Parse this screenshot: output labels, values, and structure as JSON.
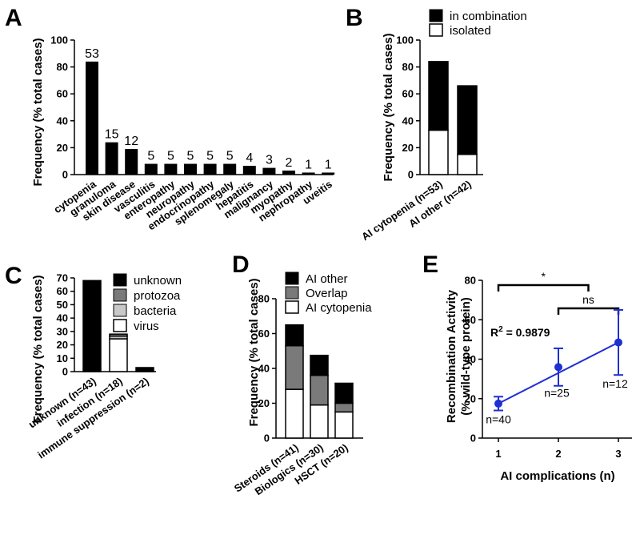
{
  "colors": {
    "black": "#000000",
    "dark_gray": "#7a7a7a",
    "light_gray": "#c8c8c8",
    "white": "#ffffff",
    "line_blue": "#1f2fd1"
  },
  "chart_data": [
    {
      "panel": "A",
      "type": "bar",
      "ylabel": "Frequency (% total cases)",
      "ylim": [
        0,
        100
      ],
      "yticks": [
        0,
        20,
        40,
        60,
        80,
        100
      ],
      "categories": [
        "cytopenia",
        "granuloma",
        "skin disease",
        "vasculitis",
        "enteropathy",
        "neuropathy",
        "endocrinopathy",
        "splenomegaly",
        "hepatitis",
        "malignancy",
        "myopathy",
        "nephropathy",
        "uveitis"
      ],
      "values": [
        84,
        24,
        19,
        8,
        8,
        8,
        8,
        8,
        6.5,
        5,
        3,
        1.5,
        1.5
      ],
      "data_labels": [
        "53",
        "15",
        "12",
        "5",
        "5",
        "5",
        "5",
        "5",
        "4",
        "3",
        "2",
        "1",
        "1"
      ]
    },
    {
      "panel": "B",
      "type": "bar",
      "stacked": true,
      "ylabel": "Frequency (% total cases)",
      "ylim": [
        0,
        100
      ],
      "yticks": [
        0,
        20,
        40,
        60,
        80,
        100
      ],
      "categories": [
        "AI cytopenia (n=53)",
        "AI other (n=42)"
      ],
      "series": [
        {
          "name": "isolated",
          "values": [
            33,
            15
          ]
        },
        {
          "name": "in combination",
          "values": [
            51,
            51
          ]
        }
      ],
      "legend": "top-right"
    },
    {
      "panel": "C",
      "type": "bar",
      "stacked": true,
      "ylabel": "Frequency (% total cases)",
      "ylim": [
        0,
        70
      ],
      "yticks": [
        0,
        10,
        20,
        30,
        40,
        50,
        60,
        70
      ],
      "categories": [
        "unknown (n=43)",
        "infection (n=18)",
        "immune suppression (n=2)"
      ],
      "series": [
        {
          "name": "virus",
          "values": [
            0,
            24.5,
            0
          ]
        },
        {
          "name": "bacteria",
          "values": [
            0,
            2,
            0
          ]
        },
        {
          "name": "protozoa",
          "values": [
            0,
            1.5,
            0
          ]
        },
        {
          "name": "unknown",
          "values": [
            68,
            0,
            3
          ]
        }
      ],
      "legend": "top-right"
    },
    {
      "panel": "D",
      "type": "bar",
      "stacked": true,
      "ylabel": "Frequency (% total cases)",
      "ylim": [
        0,
        80
      ],
      "yticks": [
        0,
        20,
        40,
        60,
        80
      ],
      "categories": [
        "Steroids (n=41)",
        "Biologics (n=30)",
        "HSCT (n=20)"
      ],
      "series": [
        {
          "name": "AI cytopenia",
          "values": [
            28,
            19,
            15
          ]
        },
        {
          "name": "Overlap",
          "values": [
            25,
            17,
            5
          ]
        },
        {
          "name": "AI other",
          "values": [
            12,
            11.5,
            11.5
          ]
        }
      ],
      "legend": "top"
    },
    {
      "panel": "E",
      "type": "scatter",
      "xlabel": "AI complications (n)",
      "ylabel_lines": [
        "Recombination Activity",
        "(% wild-type protein)"
      ],
      "xlim": [
        0.7,
        3.3
      ],
      "ylim": [
        0,
        80
      ],
      "xticks": [
        1,
        2,
        3
      ],
      "yticks": [
        0,
        20,
        40,
        60,
        80
      ],
      "points": [
        {
          "x": 1,
          "y": 17.5,
          "err": 3.5,
          "n_label": "n=40"
        },
        {
          "x": 2,
          "y": 36,
          "err": 9.5,
          "n_label": "n=25"
        },
        {
          "x": 3,
          "y": 48.5,
          "err": 16.5,
          "n_label": "n=12"
        }
      ],
      "fit_line": {
        "x": [
          1,
          3
        ],
        "y": [
          17.5,
          48.5
        ]
      },
      "r2_prefix": "R",
      "r2_sup": "2",
      "r2_value": " = 0.9879",
      "significance": [
        {
          "label": "*",
          "from": 1,
          "to": 2.5
        },
        {
          "label": "ns",
          "from": 2,
          "to": 3
        }
      ]
    }
  ]
}
